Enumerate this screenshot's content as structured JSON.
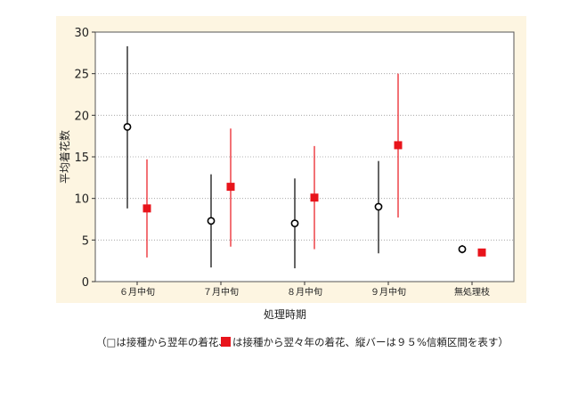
{
  "chart_data": {
    "type": "scatter",
    "categories": [
      "６月中旬",
      "７月中旬",
      "８月中旬",
      "９月中旬",
      "無処理枝"
    ],
    "xlabel": "処理時期",
    "ylabel": "平均着花数",
    "ylim": [
      0,
      30
    ],
    "yticks": [
      0,
      5,
      10,
      15,
      20,
      25,
      30
    ],
    "grid": true,
    "series": [
      {
        "marker": "open-circle",
        "color": "#000000",
        "values": [
          18.6,
          7.3,
          7.0,
          9.0,
          3.9
        ],
        "lower": [
          8.8,
          1.7,
          1.6,
          3.4,
          3.4
        ],
        "upper": [
          28.3,
          12.9,
          12.4,
          14.5,
          4.4
        ]
      },
      {
        "marker": "filled-square",
        "color": "#e8141b",
        "values": [
          8.8,
          11.4,
          10.1,
          16.4,
          3.5
        ],
        "lower": [
          2.9,
          4.2,
          3.9,
          7.7,
          3.1
        ],
        "upper": [
          14.7,
          18.4,
          16.3,
          25.0,
          3.9
        ]
      }
    ]
  },
  "caption": {
    "before": "（□は接種から翌年の着花、",
    "after": "は接種から翌々年の着花、縦バーは９５%信頼区間を表す）"
  }
}
